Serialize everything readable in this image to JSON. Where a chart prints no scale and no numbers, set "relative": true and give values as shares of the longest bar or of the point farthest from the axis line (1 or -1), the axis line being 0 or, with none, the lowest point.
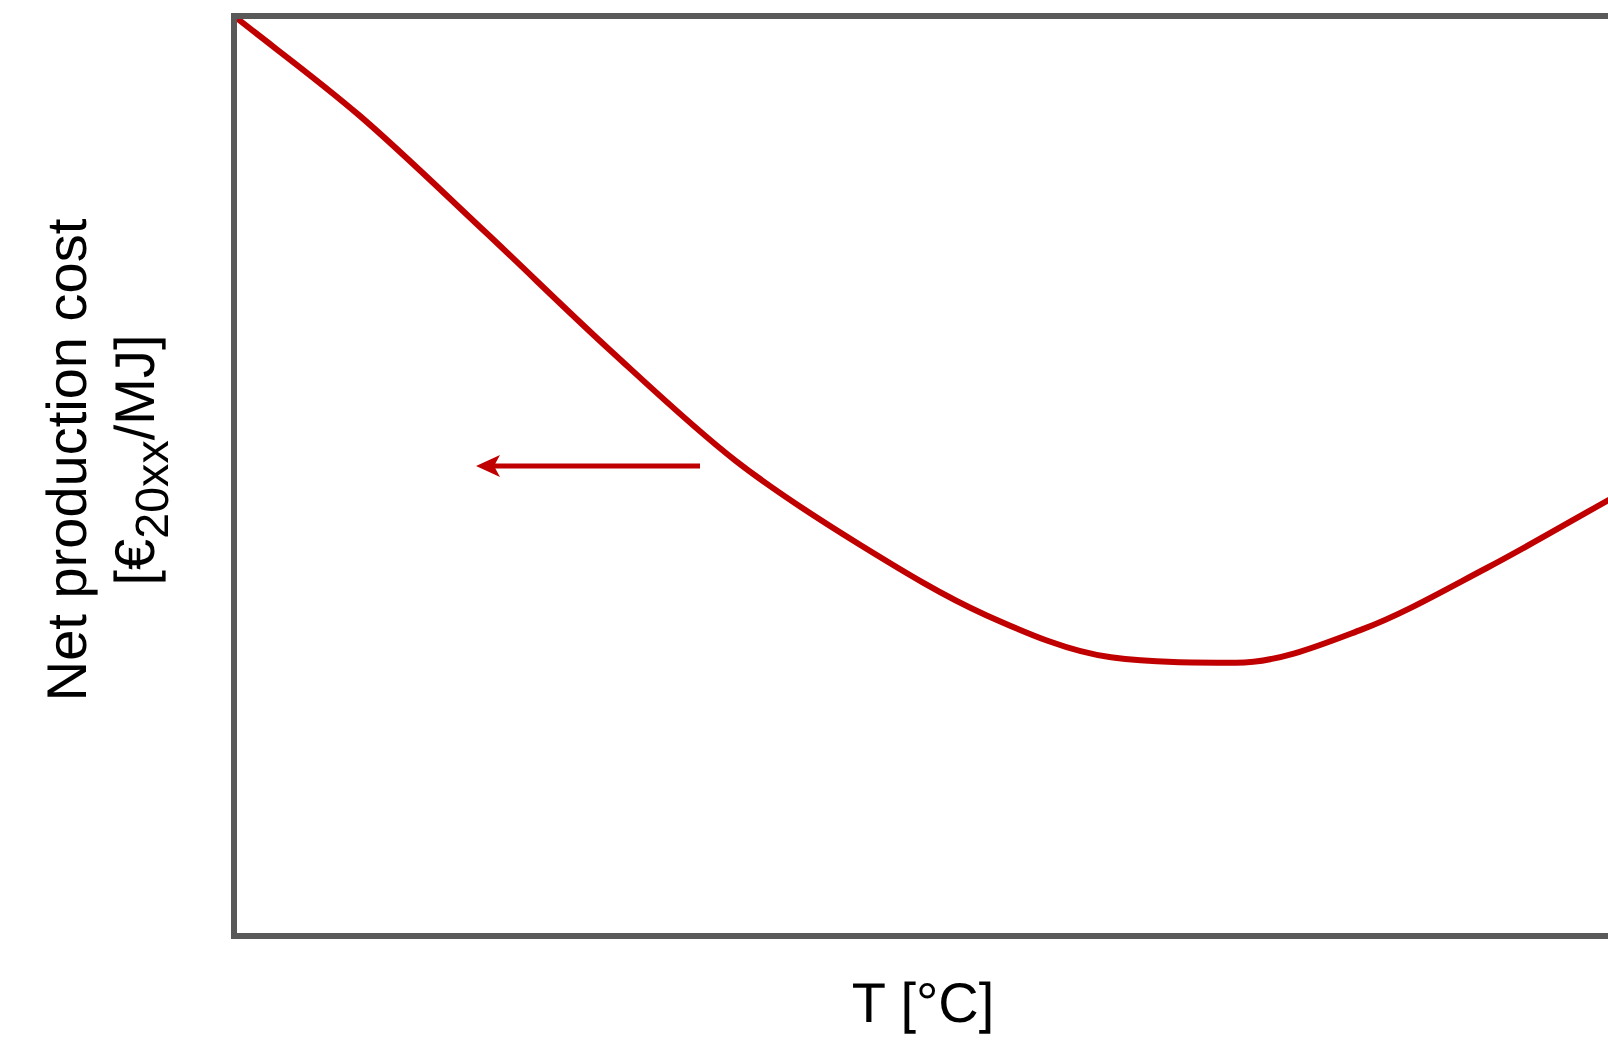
{
  "chart_data": {
    "type": "line",
    "relative": true,
    "xlabel": "T [°C]",
    "ylabel": "Net production cost\n[€$_{20xx}$/MJ]",
    "categories": [
      null,
      null,
      null,
      null,
      null,
      null,
      null,
      null,
      null,
      null,
      null,
      null
    ],
    "series": [
      {
        "color": "#c00000",
        "values": [
          1,
          0.892,
          0.766,
          0.637,
          0.517,
          0.425,
          0.349,
          0.303,
          0.297,
          0.333,
          0.4,
          0.476
        ]
      }
    ],
    "grid": false,
    "legend": false,
    "marker": "none",
    "line_style": "solid"
  }
}
